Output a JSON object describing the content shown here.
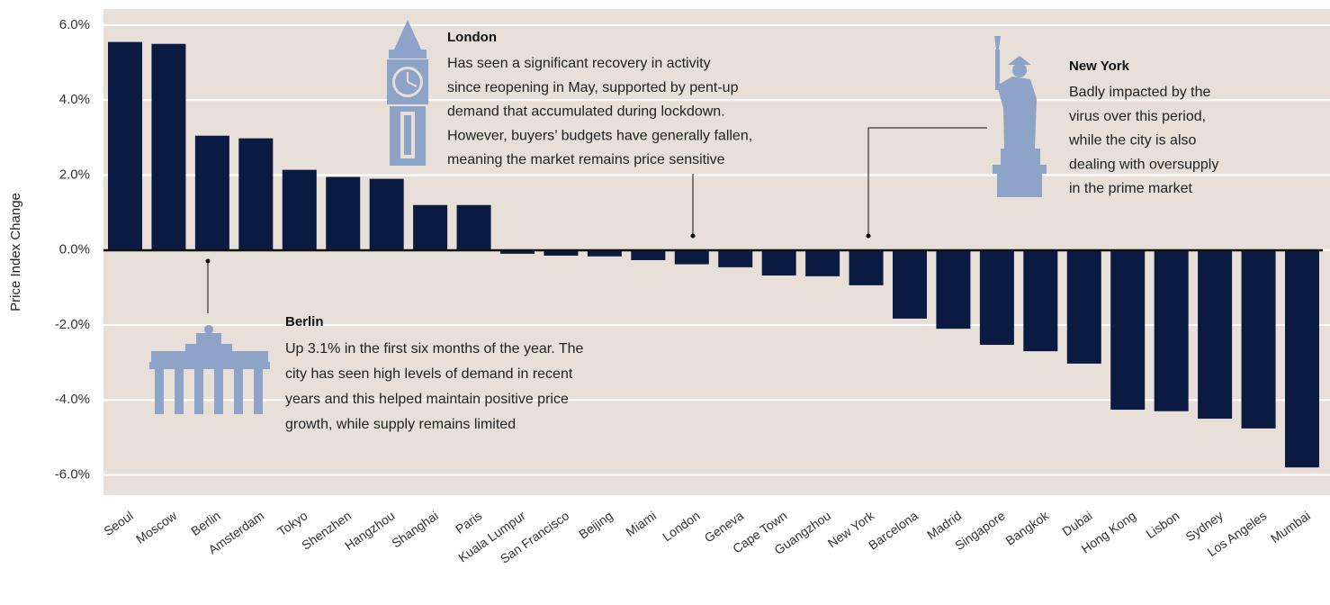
{
  "chart_data": {
    "type": "bar",
    "y_label": "Price Index Change",
    "categories": [
      "Seoul",
      "Moscow",
      "Berlin",
      "Amsterdam",
      "Tokyo",
      "Shenzhen",
      "Hangzhou",
      "Shanghai",
      "Paris",
      "Kuala Lumpur",
      "San Francisco",
      "Beijing",
      "Miami",
      "London",
      "Geneva",
      "Cape Town",
      "Guangzhou",
      "New York",
      "Barcelona",
      "Madrid",
      "Singapore",
      "Bangkok",
      "Dubai",
      "Hong Kong",
      "Lisbon",
      "Sydney",
      "Los Angeles",
      "Mumbai"
    ],
    "values": [
      5.55,
      5.5,
      3.05,
      2.98,
      2.14,
      1.95,
      1.9,
      1.2,
      1.2,
      -0.1,
      -0.15,
      -0.17,
      -0.27,
      -0.38,
      -0.46,
      -0.68,
      -0.7,
      -0.94,
      -1.83,
      -2.1,
      -2.53,
      -2.7,
      -3.03,
      -4.26,
      -4.3,
      -4.5,
      -4.76,
      -5.8
    ],
    "color": "#0a1a40",
    "ylim": [
      -6.54,
      6.43
    ],
    "yticks": [
      {
        "value": 6,
        "label": "6.0%"
      },
      {
        "value": 4,
        "label": "4.0%"
      },
      {
        "value": 2,
        "label": "2.0%"
      },
      {
        "value": 0,
        "label": "0.0%"
      },
      {
        "value": -2,
        "label": "-2.0%"
      },
      {
        "value": -4,
        "label": "-4.0%"
      },
      {
        "value": -6,
        "label": "-6.0%"
      }
    ],
    "grid": true,
    "annotations": [
      {
        "title": "London",
        "lines": [
          "Has seen a significant recovery in activity",
          "since reopening in May, supported by pent-up",
          "demand that accumulated during lockdown.",
          "However, buyers’ budgets have generally fallen,",
          "meaning the market remains price sensitive"
        ]
      },
      {
        "title": "New York",
        "lines": [
          "Badly impacted by the",
          "virus over this period,",
          "while the city is also",
          "dealing with oversupply",
          "in the prime market"
        ]
      },
      {
        "title": "Berlin",
        "lines": [
          "Up 3.1% in the first six months of the year. The",
          "city has seen high levels of demand in recent",
          "years and this helped maintain positive price",
          "growth, while supply remains limited"
        ]
      }
    ]
  }
}
